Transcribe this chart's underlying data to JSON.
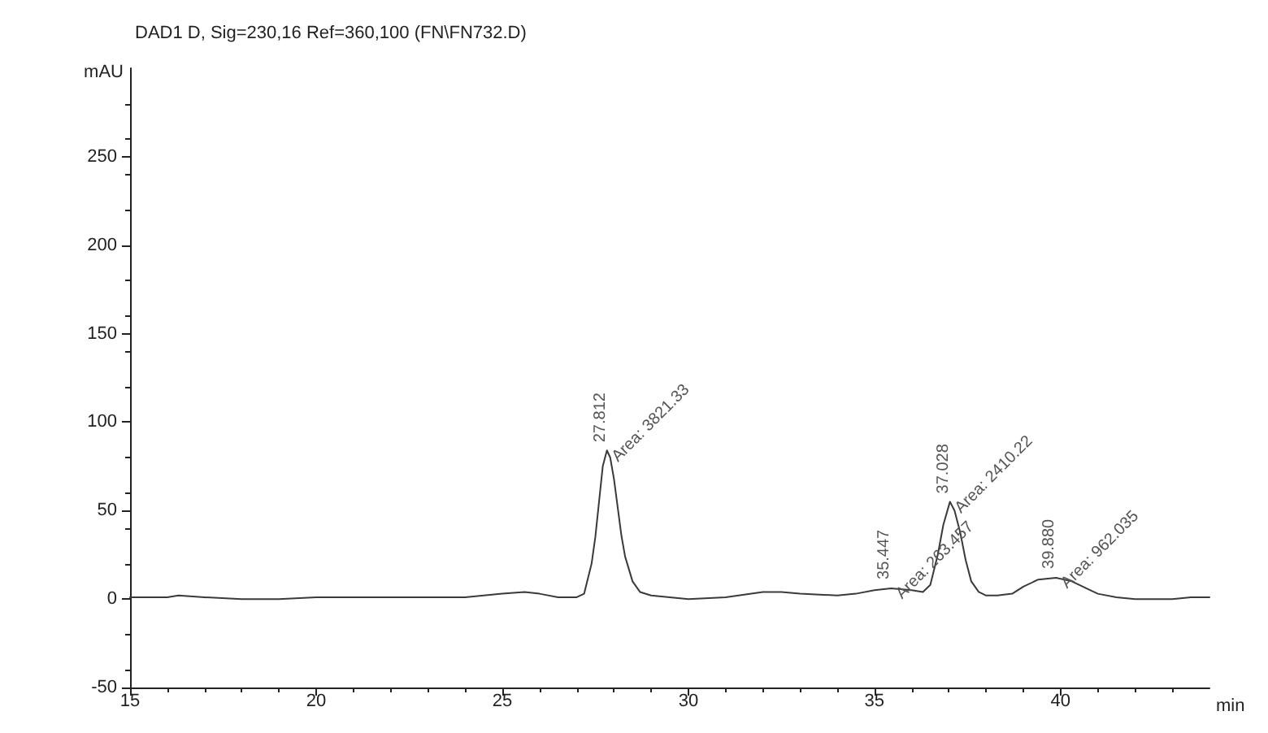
{
  "chart_data": {
    "type": "line",
    "title": "DAD1 D, Sig=230,16 Ref=360,100 (FN\\FN732.D)",
    "xlabel": "min",
    "ylabel": "mAU",
    "x": [
      15,
      16,
      16.3,
      17,
      18,
      19,
      20,
      21,
      22,
      23,
      24,
      25,
      25.6,
      26,
      26.5,
      27,
      27.2,
      27.4,
      27.5,
      27.6,
      27.7,
      27.812,
      27.9,
      28.0,
      28.1,
      28.2,
      28.3,
      28.5,
      28.7,
      29,
      29.5,
      30,
      31,
      32,
      32.5,
      33,
      34,
      34.5,
      35,
      35.447,
      36,
      36.3,
      36.5,
      36.7,
      36.85,
      37.028,
      37.15,
      37.3,
      37.45,
      37.6,
      37.8,
      38,
      38.3,
      38.7,
      39,
      39.4,
      39.88,
      40.3,
      40.7,
      41,
      41.5,
      42,
      43,
      43.5,
      44
    ],
    "series": [
      {
        "color": "#3a3a3a",
        "values": [
          1,
          1,
          2,
          1,
          0,
          0,
          1,
          1,
          1,
          1,
          1,
          3,
          4,
          3,
          1,
          1,
          3,
          20,
          35,
          55,
          75,
          84,
          80,
          68,
          52,
          36,
          24,
          10,
          4,
          2,
          1,
          0,
          1,
          4,
          4,
          3,
          2,
          3,
          5,
          6,
          5,
          4,
          8,
          25,
          42,
          55,
          50,
          38,
          22,
          10,
          4,
          2,
          2,
          3,
          7,
          11,
          12,
          10,
          6,
          3,
          1,
          0,
          0,
          1,
          1
        ]
      }
    ],
    "xlim": [
      15,
      44
    ],
    "xticks": [
      15,
      20,
      25,
      30,
      35,
      40
    ],
    "ylim": [
      -50,
      300
    ],
    "yticks": [
      -50,
      0,
      50,
      100,
      150,
      200,
      250
    ],
    "annotations": [
      {
        "text": "27.812",
        "x": 27.812,
        "y": 84
      },
      {
        "text": "Area: 3821.33",
        "x": 27.812,
        "y": 84
      },
      {
        "text": "35.447",
        "x": 35.447,
        "y": 6.5
      },
      {
        "text": "Area: 263.457",
        "x": 35.447,
        "y": 6.5
      },
      {
        "text": "37.028",
        "x": 37.028,
        "y": 55
      },
      {
        "text": "Area: 2410.22",
        "x": 37.028,
        "y": 55
      },
      {
        "text": "39.880",
        "x": 39.88,
        "y": 12.5
      },
      {
        "text": "Area: 962.035",
        "x": 39.88,
        "y": 12.5
      }
    ],
    "grid": false,
    "marker": "none",
    "line_style": "solid"
  }
}
